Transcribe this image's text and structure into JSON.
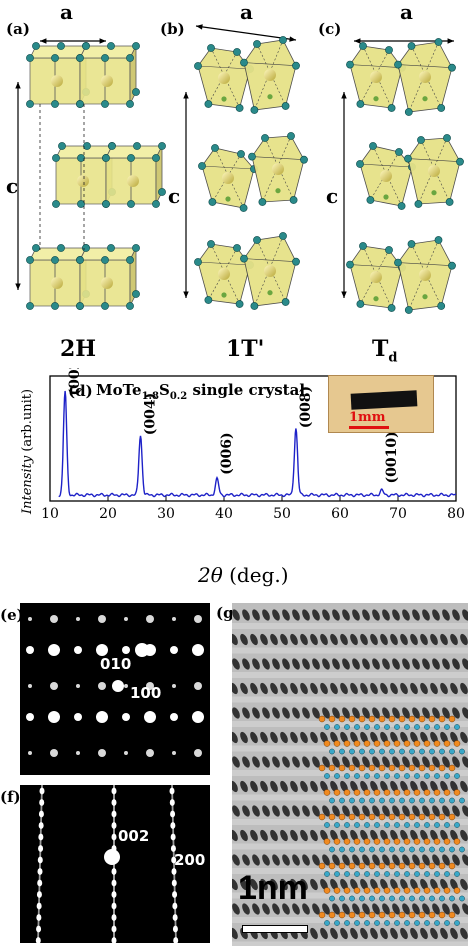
{
  "panels": {
    "a": {
      "label": "(a)",
      "axis_top": "a",
      "axis_side": "c",
      "name": "2H"
    },
    "b": {
      "label": "(b)",
      "axis_top": "a",
      "axis_side": "c",
      "name": "1T'"
    },
    "c": {
      "label": "(c)",
      "axis_top": "a",
      "axis_side": "c",
      "name": "T",
      "name_sub": "d"
    },
    "d": {
      "label": "(d)"
    },
    "e": {
      "label": "(e)",
      "spot1": "010",
      "spot2": "100"
    },
    "f": {
      "label": "(f)",
      "spot1": "002",
      "spot2": "200"
    },
    "g": {
      "label": "(g)",
      "scale_label": "1nm"
    }
  },
  "chart_data": {
    "type": "line",
    "title_parts": {
      "a": "MoTe",
      "s1": "1.8",
      "b": "S",
      "s2": "0.2",
      "c": " single crystal"
    },
    "xlabel_main": "2θ",
    "xlabel_unit": " (deg.)",
    "ylabel_main": "Intensity",
    "ylabel_unit": " (arb.unit)",
    "xlim": [
      10,
      80
    ],
    "xticks": [
      10,
      20,
      30,
      40,
      50,
      60,
      70,
      80
    ],
    "series_color": "#1e22c8",
    "peaks": [
      {
        "x": 12.6,
        "height": 0.9,
        "label": "(002)"
      },
      {
        "x": 25.6,
        "height": 0.52,
        "label": "(004)"
      },
      {
        "x": 38.8,
        "height": 0.14,
        "label": "(006)"
      },
      {
        "x": 52.4,
        "height": 0.58,
        "label": "(008)"
      },
      {
        "x": 67.2,
        "height": 0.04,
        "label": "(0010)"
      }
    ],
    "inset": {
      "scale_label": "1mm",
      "scale_color": "#e01010"
    }
  }
}
